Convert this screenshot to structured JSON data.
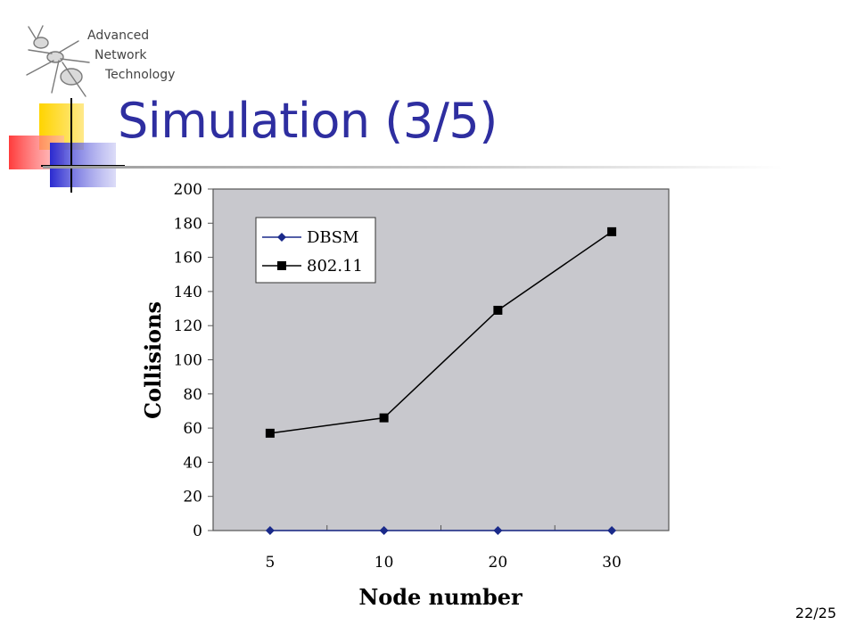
{
  "logo": {
    "line1": "Advanced",
    "line2": "Network",
    "line3": "Technology",
    "icon": "ant-icon"
  },
  "slide": {
    "title": "Simulation (3/5)",
    "page_number": "22/25"
  },
  "colors": {
    "title": "#2e2ea0",
    "plot_bg": "#c8c8cd",
    "dbsm": "#1a2a8a",
    "ieee": "#000000"
  },
  "chart_data": {
    "type": "line",
    "title": "",
    "xlabel": "Node number",
    "ylabel": "Collisions",
    "categories": [
      "5",
      "10",
      "20",
      "30"
    ],
    "ylim": [
      0,
      200
    ],
    "yticks": [
      "0",
      "20",
      "40",
      "60",
      "80",
      "100",
      "120",
      "140",
      "160",
      "180",
      "200"
    ],
    "grid": false,
    "legend": "top-left",
    "series": [
      {
        "name": "DBSM",
        "marker": "diamond",
        "color": "#1a2a8a",
        "values": [
          0,
          0,
          0,
          0
        ]
      },
      {
        "name": "802.11",
        "marker": "square",
        "color": "#000000",
        "values": [
          57,
          66,
          129,
          175
        ]
      }
    ]
  }
}
